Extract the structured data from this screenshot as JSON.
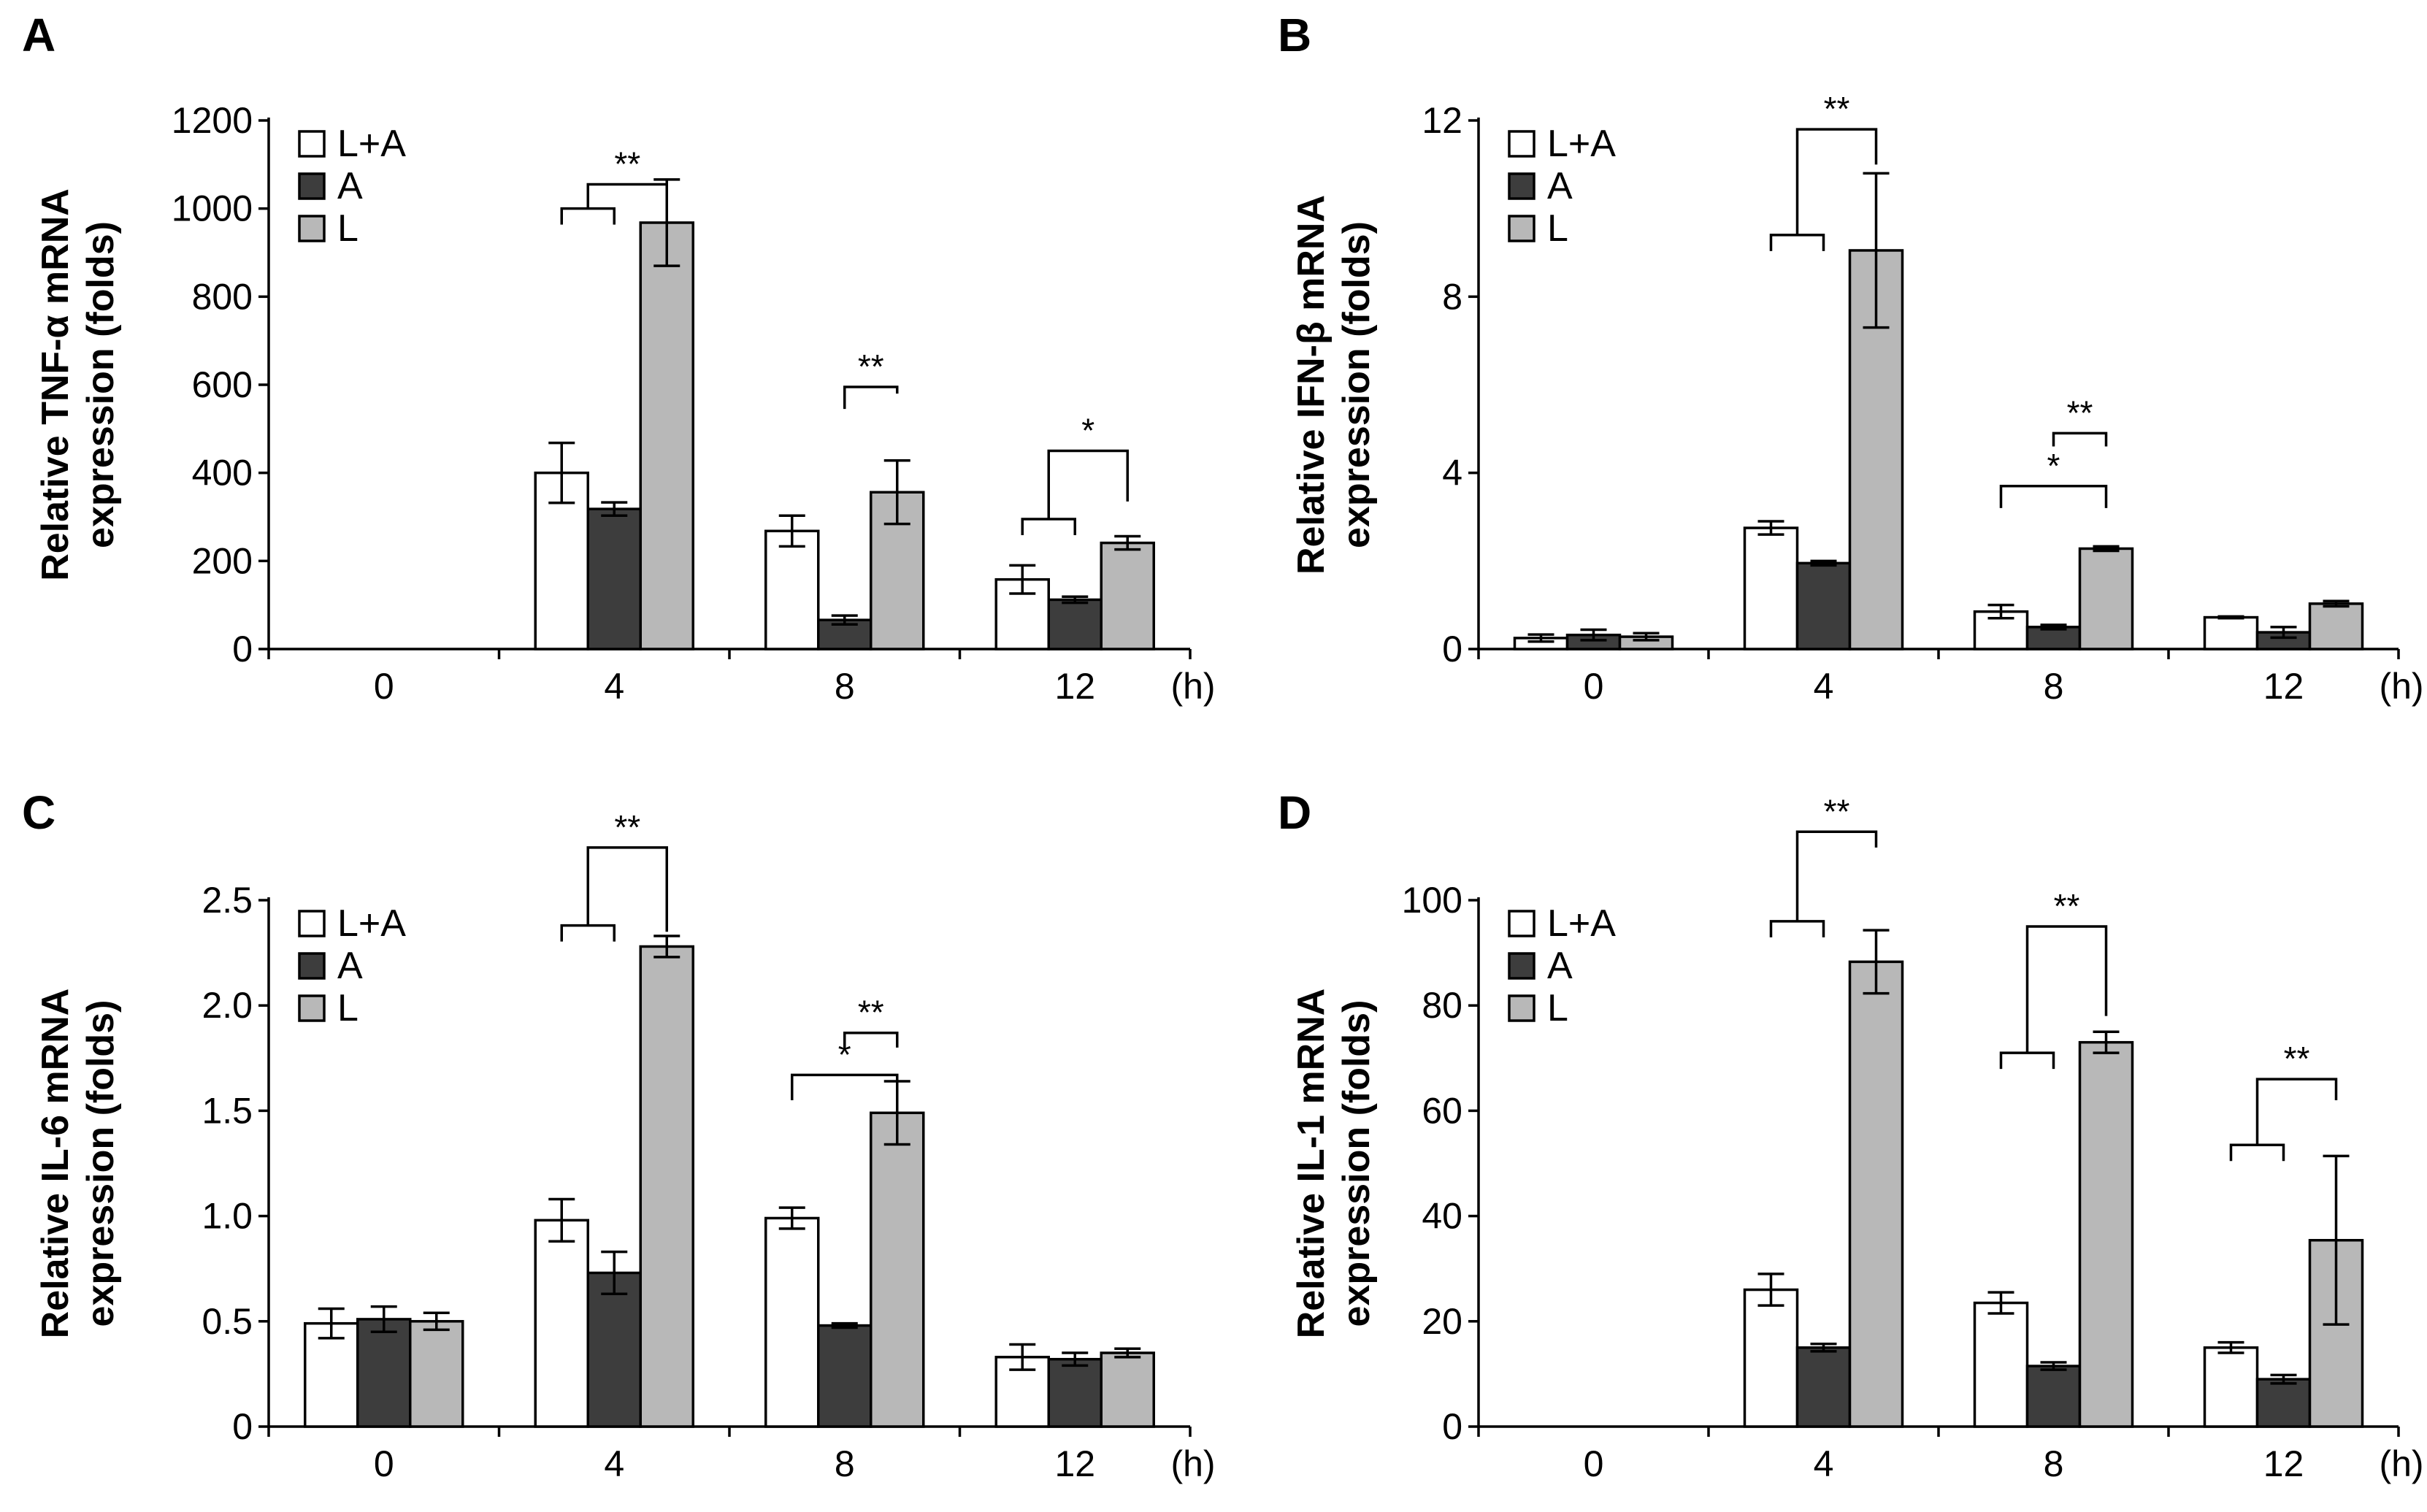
{
  "colors": {
    "L+A": "#ffffff",
    "A": "#3d3d3d",
    "L": "#b8b8b8",
    "stroke": "#000000"
  },
  "chart_data": [
    {
      "type": "bar",
      "panel": "A",
      "ylabel_line1": "Relative TNF-α mRNA",
      "ylabel_line2": "expression (folds)",
      "ylim": [
        0,
        1200
      ],
      "yticks": [
        0,
        200,
        400,
        600,
        800,
        1000,
        1200
      ],
      "categories": [
        "0",
        "4",
        "8",
        "12"
      ],
      "x_unit": "(h)",
      "series": [
        {
          "name": "L+A",
          "values": [
            0,
            400,
            268,
            158
          ],
          "errors": [
            0,
            68,
            35,
            32
          ]
        },
        {
          "name": "A",
          "values": [
            0,
            318,
            66,
            112
          ],
          "errors": [
            0,
            15,
            10,
            7
          ]
        },
        {
          "name": "L",
          "values": [
            0,
            968,
            356,
            241
          ],
          "errors": [
            0,
            98,
            72,
            15
          ]
        }
      ],
      "annotations": [
        {
          "text": "**",
          "group": 1,
          "from": 0,
          "to": 2,
          "top": 1055,
          "from_drop": 1000,
          "to_drop": 1068,
          "nested": [
            0,
            1
          ]
        },
        {
          "text": "**",
          "group": 2,
          "from": 1,
          "to": 2,
          "top": 595,
          "from_drop": 545,
          "to_drop": 580
        },
        {
          "text": "*",
          "group": 3,
          "from": 0,
          "to": 2,
          "top": 450,
          "from_drop": 295,
          "to_drop": 335,
          "nested": [
            0,
            1
          ]
        }
      ]
    },
    {
      "type": "bar",
      "panel": "B",
      "ylabel_line1": "Relative IFN-β mRNA",
      "ylabel_line2": "expression (folds)",
      "ylim": [
        0,
        12
      ],
      "yticks": [
        0,
        4,
        8,
        12
      ],
      "categories": [
        "0",
        "4",
        "8",
        "12"
      ],
      "x_unit": "(h)",
      "series": [
        {
          "name": "L+A",
          "values": [
            0.25,
            2.75,
            0.85,
            0.72
          ],
          "errors": [
            0.08,
            0.15,
            0.15,
            0.02
          ]
        },
        {
          "name": "A",
          "values": [
            0.32,
            1.95,
            0.5,
            0.38
          ],
          "errors": [
            0.12,
            0.05,
            0.05,
            0.12
          ]
        },
        {
          "name": "L",
          "values": [
            0.28,
            9.05,
            2.28,
            1.03
          ],
          "errors": [
            0.08,
            1.75,
            0.05,
            0.06
          ]
        }
      ],
      "annotations": [
        {
          "text": "**",
          "group": 1,
          "from": 0,
          "to": 2,
          "top": 11.8,
          "from_drop": 9.4,
          "to_drop": 11,
          "nested": [
            0,
            1
          ]
        },
        {
          "text": "**",
          "group": 2,
          "from": 1,
          "to": 2,
          "top": 4.9,
          "from_drop": 4.6,
          "to_drop": 4.6
        },
        {
          "text": "*",
          "group": 2,
          "from": 0,
          "to": 2,
          "top": 3.7,
          "from_drop": 3.2,
          "to_drop": 3.2
        }
      ]
    },
    {
      "type": "bar",
      "panel": "C",
      "ylabel_line1": "Relative IL-6 mRNA",
      "ylabel_line2": "expression (folds)",
      "ylim": [
        0,
        2.5
      ],
      "yticks": [
        0,
        0.5,
        1.0,
        1.5,
        2.0,
        2.5
      ],
      "ytick_labels": [
        "0",
        "0.5",
        "1.0",
        "1.5",
        "2.0",
        "2.5"
      ],
      "categories": [
        "0",
        "4",
        "8",
        "12"
      ],
      "x_unit": "(h)",
      "series": [
        {
          "name": "L+A",
          "values": [
            0.49,
            0.98,
            0.99,
            0.33
          ],
          "errors": [
            0.07,
            0.1,
            0.05,
            0.06
          ]
        },
        {
          "name": "A",
          "values": [
            0.51,
            0.73,
            0.48,
            0.32
          ],
          "errors": [
            0.06,
            0.1,
            0.01,
            0.03
          ]
        },
        {
          "name": "L",
          "values": [
            0.5,
            2.28,
            1.49,
            0.35
          ],
          "errors": [
            0.04,
            0.05,
            0.15,
            0.02
          ]
        }
      ],
      "annotations": [
        {
          "text": "**",
          "group": 1,
          "from": 0,
          "to": 2,
          "top": 2.75,
          "from_drop": 2.38,
          "to_drop": 2.35,
          "nested": [
            0,
            1
          ]
        },
        {
          "text": "**",
          "group": 2,
          "from": 1,
          "to": 2,
          "top": 1.87,
          "from_drop": 1.8,
          "to_drop": 1.8
        },
        {
          "text": "*",
          "group": 2,
          "from": 0,
          "to": 2,
          "top": 1.67,
          "from_drop": 1.55,
          "to_drop": 1.55
        }
      ]
    },
    {
      "type": "bar",
      "panel": "D",
      "ylabel_line1": "Relative IL-1 mRNA",
      "ylabel_line2": "expression (folds)",
      "ylim": [
        0,
        100
      ],
      "yticks": [
        0,
        20,
        40,
        60,
        80,
        100
      ],
      "categories": [
        "0",
        "4",
        "8",
        "12"
      ],
      "x_unit": "(h)",
      "series": [
        {
          "name": "L+A",
          "values": [
            0,
            26,
            23.5,
            15
          ],
          "errors": [
            0,
            3,
            2,
            1
          ]
        },
        {
          "name": "A",
          "values": [
            0,
            15,
            11.5,
            9
          ],
          "errors": [
            0,
            0.7,
            0.7,
            0.8
          ]
        },
        {
          "name": "L",
          "values": [
            0,
            88.3,
            73,
            35.4
          ],
          "errors": [
            0,
            6,
            2,
            16
          ]
        }
      ],
      "annotations": [
        {
          "text": "**",
          "group": 1,
          "from": 0,
          "to": 2,
          "top": 113,
          "from_drop": 96,
          "to_drop": 110,
          "nested": [
            0,
            1
          ]
        },
        {
          "text": "**",
          "group": 2,
          "from": 0,
          "to": 2,
          "top": 95,
          "from_drop": 71,
          "to_drop": 78,
          "nested": [
            0,
            1
          ]
        },
        {
          "text": "**",
          "group": 3,
          "from": 0,
          "to": 2,
          "top": 66,
          "from_drop": 53.5,
          "to_drop": 62,
          "nested": [
            0,
            1
          ]
        }
      ]
    }
  ]
}
